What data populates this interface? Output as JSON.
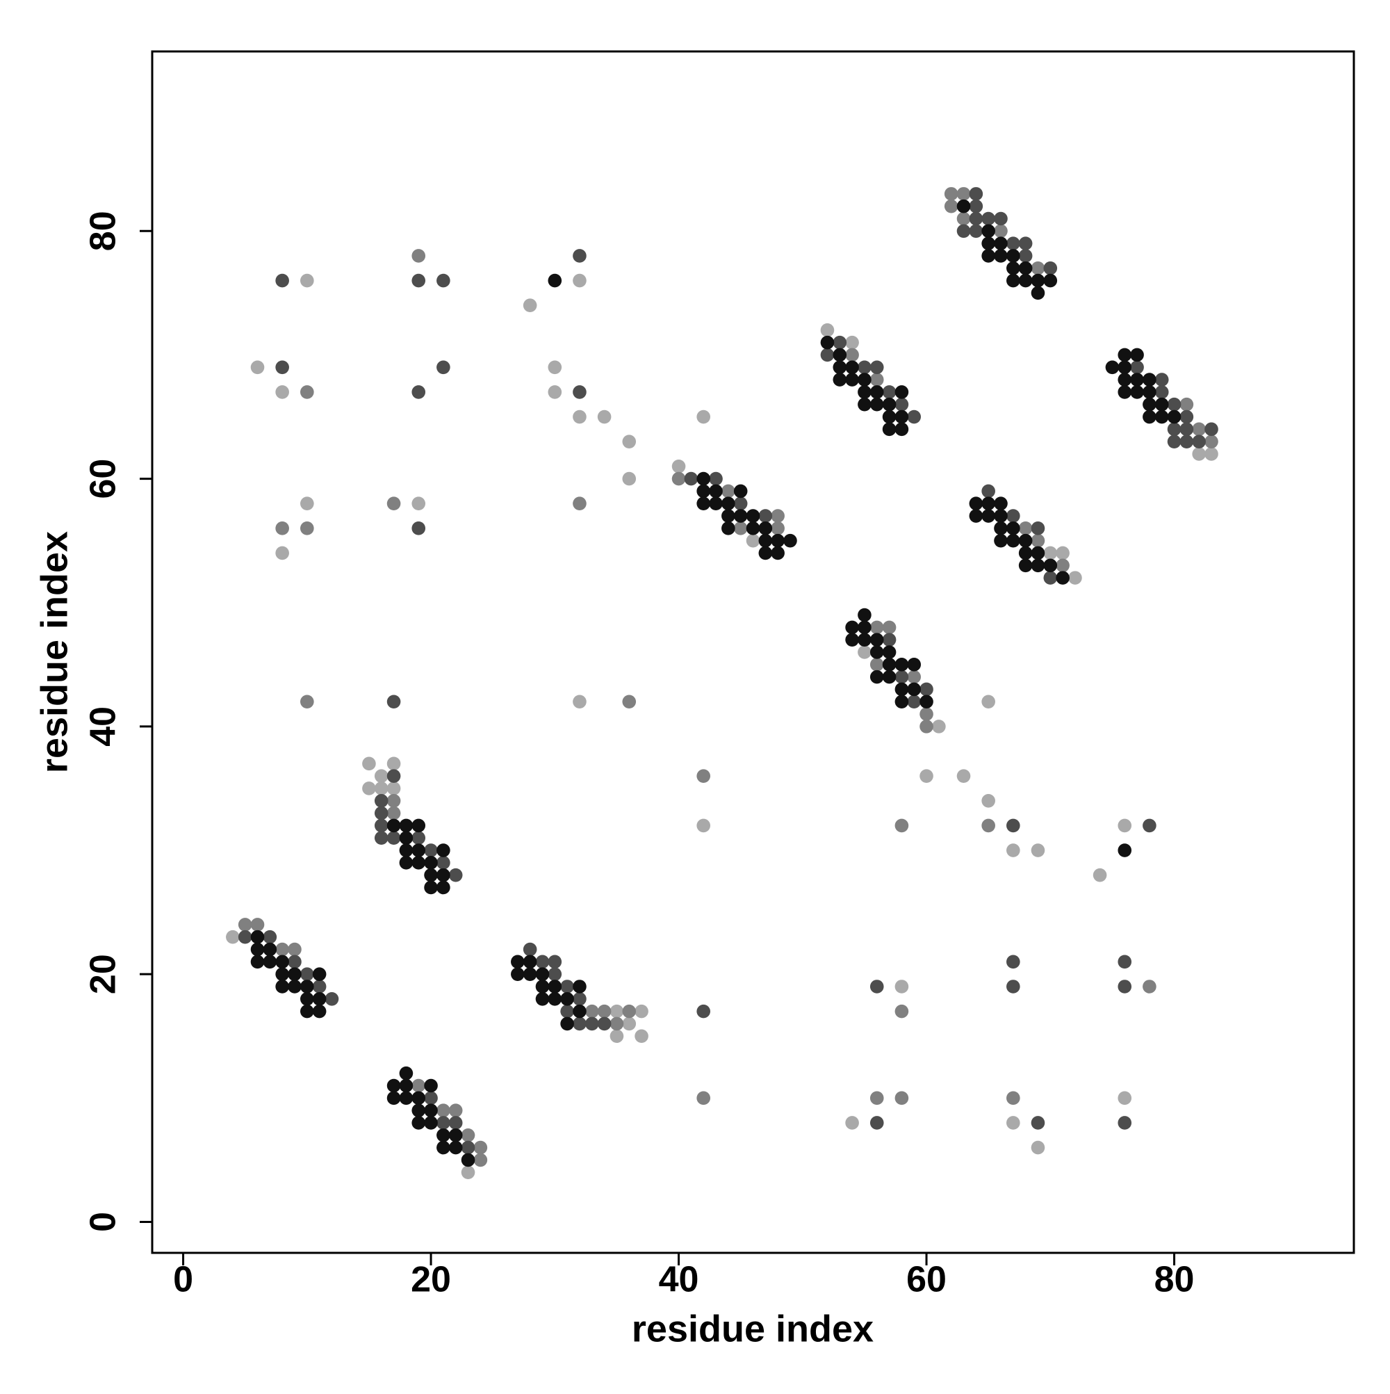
{
  "chart_data": {
    "type": "scatter",
    "x_label": "residue index",
    "y_label": "residue index",
    "xlim": [
      -2.5,
      94.5
    ],
    "ylim": [
      -2.5,
      94.5
    ],
    "xticks": [
      0,
      20,
      40,
      60,
      80
    ],
    "yticks": [
      0,
      20,
      40,
      60,
      80
    ],
    "grid": false,
    "series": [
      {
        "color": "#a9a9a9",
        "x": [
          4,
          23,
          15,
          17,
          16,
          15,
          16,
          17,
          35,
          37,
          36,
          35,
          37,
          40,
          46,
          52,
          54,
          55,
          61,
          70,
          71,
          72,
          82,
          83,
          10,
          28,
          32,
          6,
          8,
          30,
          30,
          32,
          34,
          36,
          36,
          42,
          8,
          10,
          19,
          32,
          42,
          60,
          63,
          65,
          65,
          67,
          69,
          74,
          76,
          58,
          54,
          67,
          69,
          76
        ],
        "values": [
          23,
          4,
          37,
          37,
          36,
          35,
          35,
          35,
          17,
          17,
          16,
          15,
          15,
          61,
          55,
          72,
          71,
          46,
          40,
          54,
          54,
          52,
          62,
          62,
          76,
          74,
          76,
          69,
          67,
          69,
          67,
          65,
          65,
          63,
          60,
          65,
          54,
          58,
          58,
          42,
          32,
          36,
          36,
          42,
          34,
          30,
          30,
          28,
          32,
          19,
          8,
          8,
          6,
          10
        ]
      },
      {
        "color": "#808080",
        "x": [
          5,
          6,
          8,
          9,
          19,
          21,
          22,
          23,
          24,
          24,
          17,
          17,
          33,
          34,
          36,
          35,
          40,
          44,
          48,
          45,
          48,
          54,
          56,
          56,
          57,
          56,
          59,
          60,
          60,
          62,
          63,
          62,
          63,
          66,
          69,
          68,
          69,
          71,
          81,
          82,
          83,
          19,
          10,
          8,
          10,
          17,
          32,
          10,
          36,
          42,
          58,
          65,
          58,
          78,
          42,
          56,
          58,
          67
        ],
        "values": [
          24,
          24,
          22,
          22,
          11,
          9,
          9,
          7,
          6,
          5,
          34,
          33,
          17,
          17,
          17,
          16,
          60,
          59,
          57,
          56,
          56,
          70,
          68,
          48,
          48,
          45,
          44,
          41,
          40,
          83,
          83,
          82,
          81,
          80,
          77,
          56,
          55,
          53,
          66,
          64,
          63,
          78,
          67,
          56,
          56,
          58,
          58,
          42,
          42,
          36,
          32,
          32,
          17,
          19,
          10,
          10,
          10,
          10
        ]
      },
      {
        "color": "#4d4d4d",
        "x": [
          5,
          7,
          9,
          10,
          11,
          12,
          20,
          21,
          22,
          23,
          17,
          16,
          16,
          16,
          16,
          17,
          19,
          20,
          21,
          22,
          28,
          29,
          30,
          30,
          31,
          32,
          31,
          32,
          33,
          34,
          41,
          43,
          45,
          47,
          53,
          52,
          55,
          56,
          57,
          58,
          59,
          57,
          58,
          60,
          59,
          64,
          64,
          64,
          65,
          66,
          63,
          64,
          67,
          68,
          68,
          70,
          65,
          67,
          69,
          70,
          77,
          79,
          79,
          80,
          81,
          80,
          81,
          83,
          80,
          81,
          82,
          8,
          19,
          21,
          32,
          8,
          19,
          21,
          32,
          19,
          17,
          67,
          78,
          42,
          56,
          67,
          67,
          76,
          76,
          56,
          69,
          76
        ],
        "values": [
          23,
          23,
          21,
          20,
          19,
          18,
          10,
          8,
          8,
          6,
          36,
          34,
          33,
          32,
          31,
          31,
          31,
          30,
          29,
          28,
          22,
          21,
          21,
          20,
          19,
          18,
          17,
          16,
          16,
          16,
          60,
          60,
          58,
          57,
          71,
          70,
          69,
          69,
          67,
          66,
          65,
          47,
          44,
          43,
          42,
          83,
          82,
          81,
          81,
          81,
          80,
          80,
          79,
          79,
          78,
          77,
          59,
          57,
          56,
          52,
          69,
          68,
          67,
          66,
          65,
          64,
          64,
          64,
          63,
          63,
          63,
          76,
          76,
          76,
          78,
          69,
          67,
          69,
          67,
          56,
          42,
          32,
          32,
          17,
          19,
          21,
          19,
          21,
          19,
          8,
          8,
          8
        ]
      },
      {
        "color": "#111111",
        "x": [
          6,
          6,
          7,
          6,
          7,
          8,
          8,
          9,
          11,
          8,
          9,
          10,
          10,
          11,
          10,
          11,
          18,
          17,
          18,
          20,
          17,
          18,
          19,
          19,
          20,
          19,
          20,
          21,
          22,
          21,
          22,
          23,
          17,
          18,
          19,
          18,
          18,
          19,
          21,
          18,
          19,
          20,
          20,
          21,
          20,
          21,
          27,
          28,
          27,
          28,
          29,
          29,
          30,
          32,
          29,
          30,
          31,
          32,
          31,
          42,
          42,
          43,
          45,
          42,
          43,
          44,
          44,
          45,
          46,
          44,
          46,
          47,
          47,
          48,
          49,
          47,
          48,
          52,
          53,
          53,
          54,
          53,
          54,
          55,
          55,
          56,
          58,
          55,
          56,
          57,
          57,
          58,
          57,
          58,
          55,
          54,
          55,
          54,
          55,
          56,
          56,
          57,
          57,
          58,
          59,
          56,
          57,
          58,
          59,
          58,
          60,
          63,
          65,
          65,
          66,
          65,
          66,
          67,
          67,
          68,
          67,
          68,
          69,
          70,
          69,
          64,
          65,
          66,
          64,
          65,
          66,
          66,
          67,
          66,
          67,
          68,
          68,
          69,
          68,
          69,
          70,
          71,
          76,
          77,
          75,
          76,
          76,
          77,
          78,
          76,
          77,
          78,
          78,
          79,
          78,
          79,
          80,
          30,
          76
        ],
        "values": [
          23,
          22,
          22,
          21,
          21,
          21,
          20,
          20,
          20,
          19,
          19,
          19,
          18,
          18,
          17,
          17,
          12,
          11,
          11,
          11,
          10,
          10,
          10,
          9,
          9,
          8,
          8,
          7,
          7,
          6,
          6,
          5,
          32,
          32,
          32,
          31,
          30,
          30,
          30,
          29,
          29,
          29,
          28,
          28,
          27,
          27,
          21,
          21,
          20,
          20,
          20,
          19,
          19,
          19,
          18,
          18,
          18,
          17,
          16,
          60,
          59,
          59,
          59,
          58,
          58,
          58,
          57,
          57,
          57,
          56,
          56,
          56,
          55,
          55,
          55,
          54,
          54,
          71,
          70,
          69,
          69,
          68,
          68,
          68,
          67,
          67,
          67,
          66,
          66,
          66,
          65,
          65,
          64,
          64,
          49,
          48,
          48,
          47,
          47,
          47,
          46,
          46,
          45,
          45,
          45,
          44,
          44,
          43,
          43,
          42,
          42,
          82,
          80,
          79,
          79,
          78,
          78,
          78,
          77,
          77,
          76,
          76,
          76,
          76,
          75,
          58,
          58,
          58,
          57,
          57,
          57,
          56,
          56,
          55,
          55,
          55,
          54,
          54,
          53,
          53,
          53,
          52,
          70,
          70,
          69,
          69,
          68,
          68,
          68,
          67,
          67,
          67,
          66,
          66,
          65,
          65,
          65,
          76,
          30
        ]
      }
    ]
  }
}
